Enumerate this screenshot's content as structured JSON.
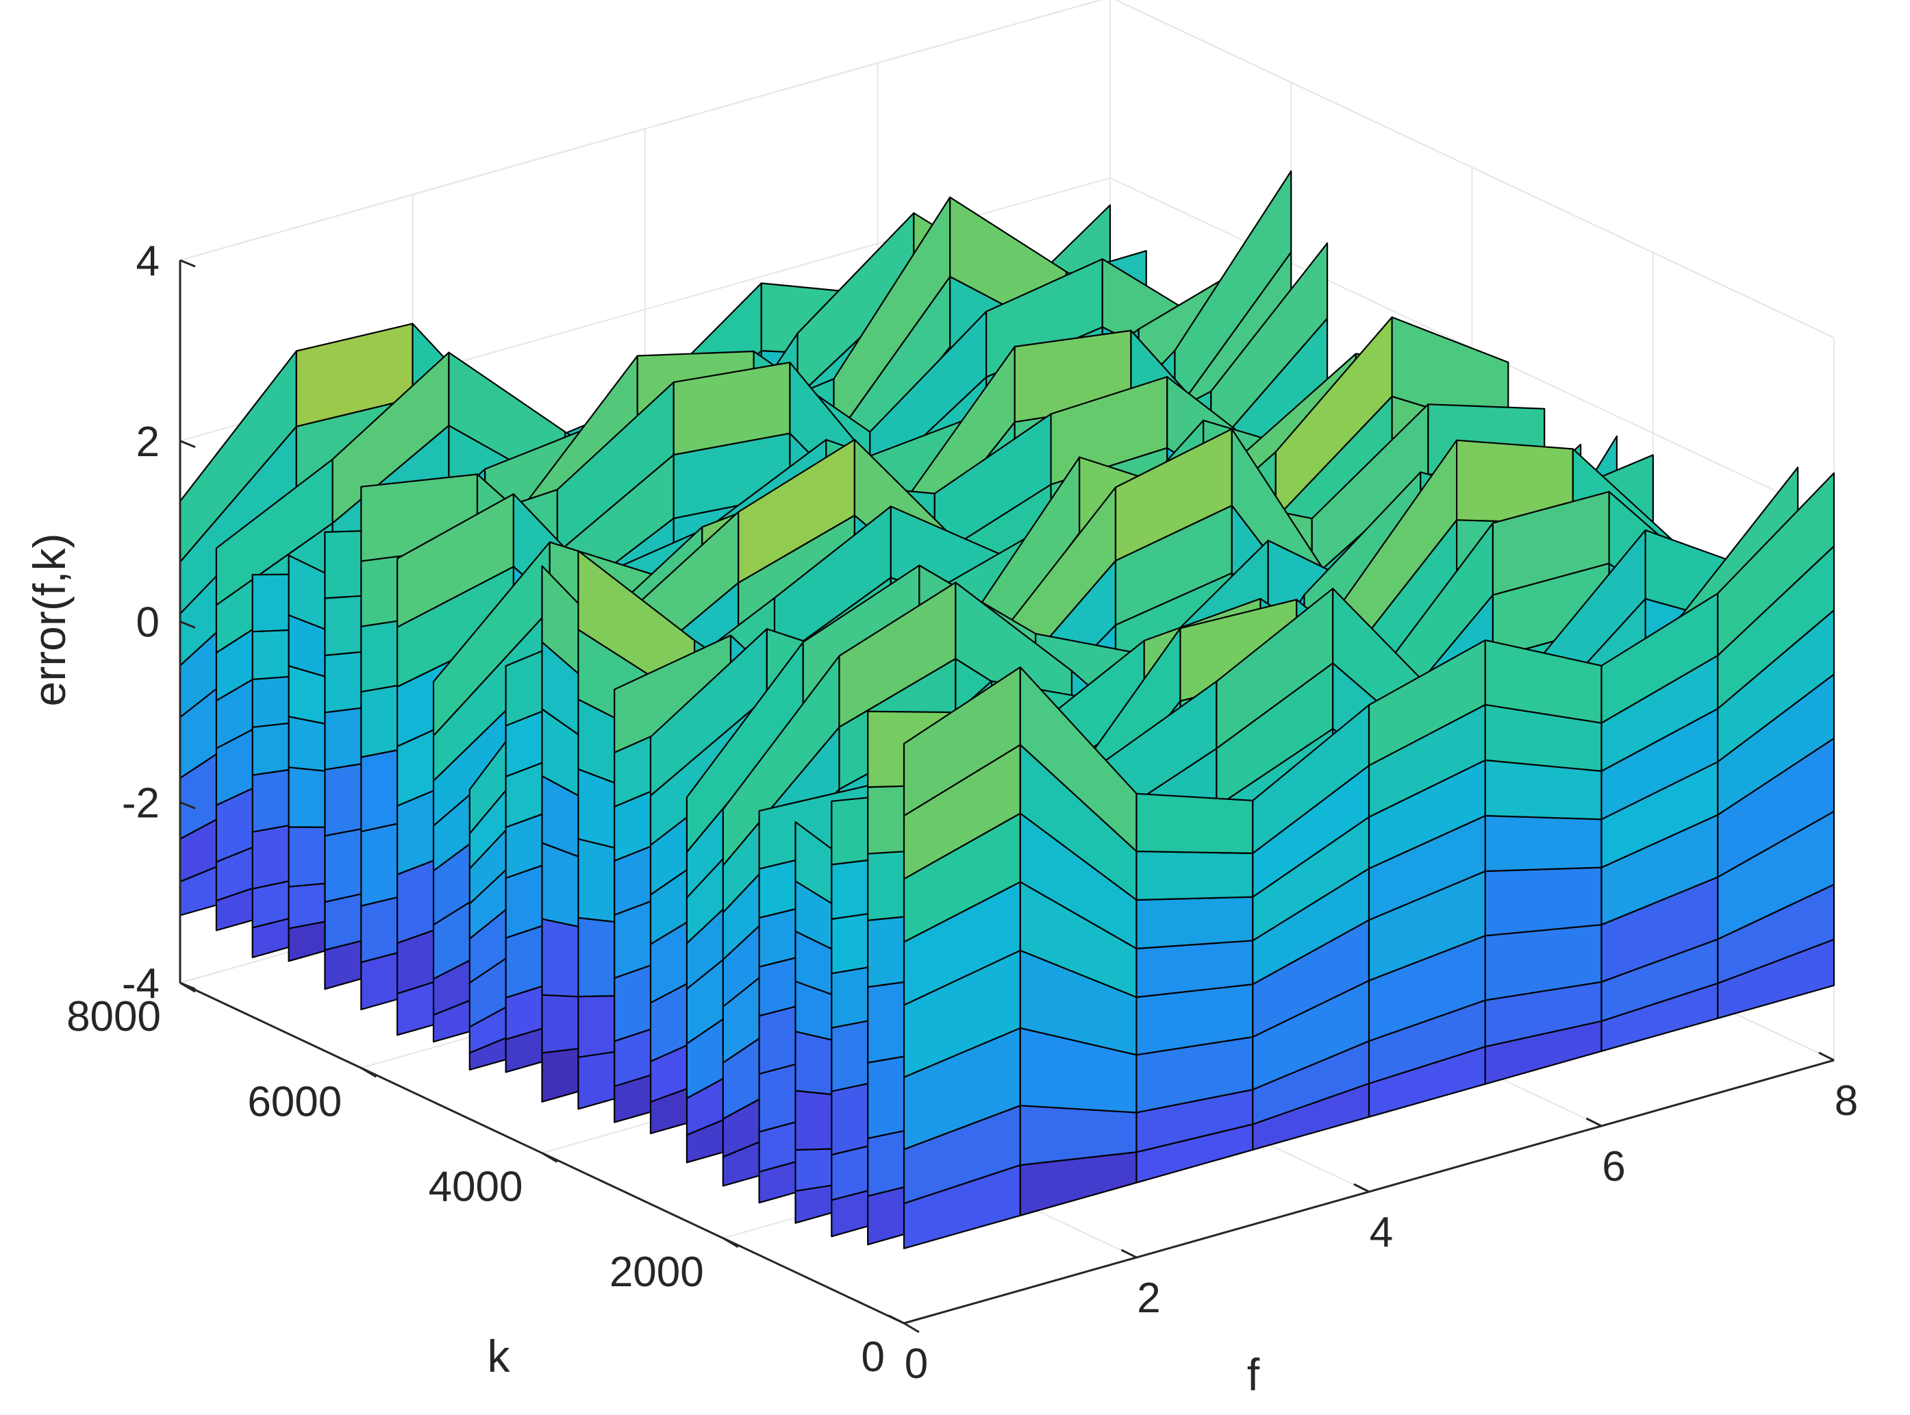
{
  "chart_data": {
    "type": "surface3d",
    "title": "",
    "xlabel": "f",
    "ylabel": "k",
    "zlabel": "error(f,k)",
    "xlim": [
      0,
      8
    ],
    "ylim": [
      0,
      8000
    ],
    "zlim": [
      -4,
      4
    ],
    "grid": true,
    "colormap": "parula",
    "x_ticks": [
      "0",
      "2",
      "4",
      "6",
      "8"
    ],
    "y_ticks": [
      "0",
      "2000",
      "4000",
      "6000",
      "8000"
    ],
    "z_ticks": [
      "-4",
      "-2",
      "0",
      "2",
      "4"
    ],
    "f": [
      0,
      1,
      2,
      3,
      4,
      5,
      6,
      7,
      8
    ],
    "k_samples": [
      0,
      400,
      800,
      1200,
      1600,
      2000,
      2400,
      2800,
      3200,
      3600,
      4000,
      4400,
      4800,
      5200,
      5600,
      6000,
      6400,
      6800,
      7200,
      7600,
      8000
    ],
    "z_levels": [
      -3.3,
      -2.9,
      -2.4,
      -1.7,
      -1.0,
      -0.4,
      0.2,
      0.8,
      1.5
    ],
    "colors": {
      "low": "#3e26a8",
      "mid_low": "#1c8cf0",
      "mid": "#19bfb7",
      "mid_high": "#8ccc52",
      "high": "#f3b63a",
      "edge": "#000000",
      "grid": "#e6e6e6",
      "axis": "#262626"
    }
  }
}
